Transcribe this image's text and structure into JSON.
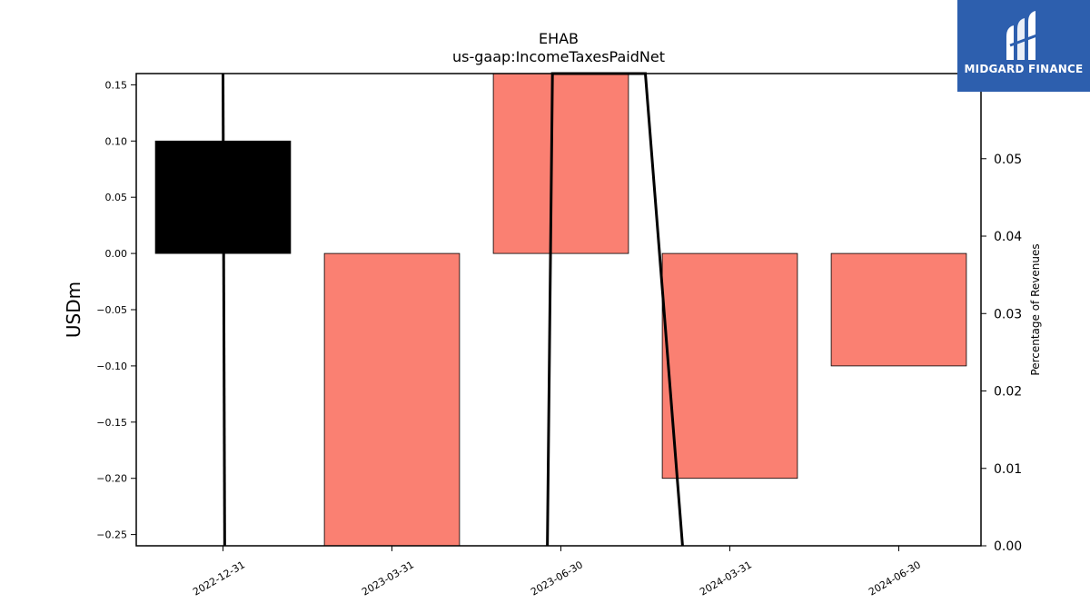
{
  "chart_data": {
    "type": "bar",
    "title": "EHAB",
    "subtitle": "us-gaap:IncomeTaxesPaidNet",
    "ylabel": "USDm",
    "y2label": "Percentage of Revenues",
    "categories": [
      "2022-12-31",
      "2023-03-31",
      "2023-06-30",
      "2024-03-31",
      "2024-06-30"
    ],
    "values": [
      0.1,
      -0.26,
      0.16,
      -0.2,
      -0.1
    ],
    "ylim": [
      -0.26,
      0.16
    ],
    "yticks": [
      "0.15",
      "0.10",
      "0.05",
      "0.00",
      "−0.05",
      "−0.10",
      "−0.15",
      "−0.20",
      "−0.25"
    ],
    "ytick_values": [
      0.15,
      0.1,
      0.05,
      0.0,
      -0.05,
      -0.1,
      -0.15,
      -0.2,
      -0.25
    ],
    "bar_colors": [
      "#000000",
      "#fa8072",
      "#fa8072",
      "#fa8072",
      "#fa8072"
    ],
    "line": {
      "name": "Percentage of Revenues",
      "x_positions": [
        0,
        2,
        3
      ],
      "segments": [
        [
          [
            0,
            0.061
          ],
          [
            0.01,
            0.0
          ]
        ],
        [
          [
            1.92,
            0.0
          ],
          [
            1.95,
            0.061
          ],
          [
            2.5,
            0.061
          ],
          [
            2.72,
            0.0
          ]
        ]
      ]
    },
    "y2lim": [
      0,
      0.061
    ],
    "y2ticks": [
      "0.00",
      "0.01",
      "0.02",
      "0.03",
      "0.04",
      "0.05"
    ],
    "y2tick_values": [
      0,
      0.01,
      0.02,
      0.03,
      0.04,
      0.05
    ],
    "grid": false
  },
  "logo": {
    "text": "MIDGARD FINANCE"
  }
}
